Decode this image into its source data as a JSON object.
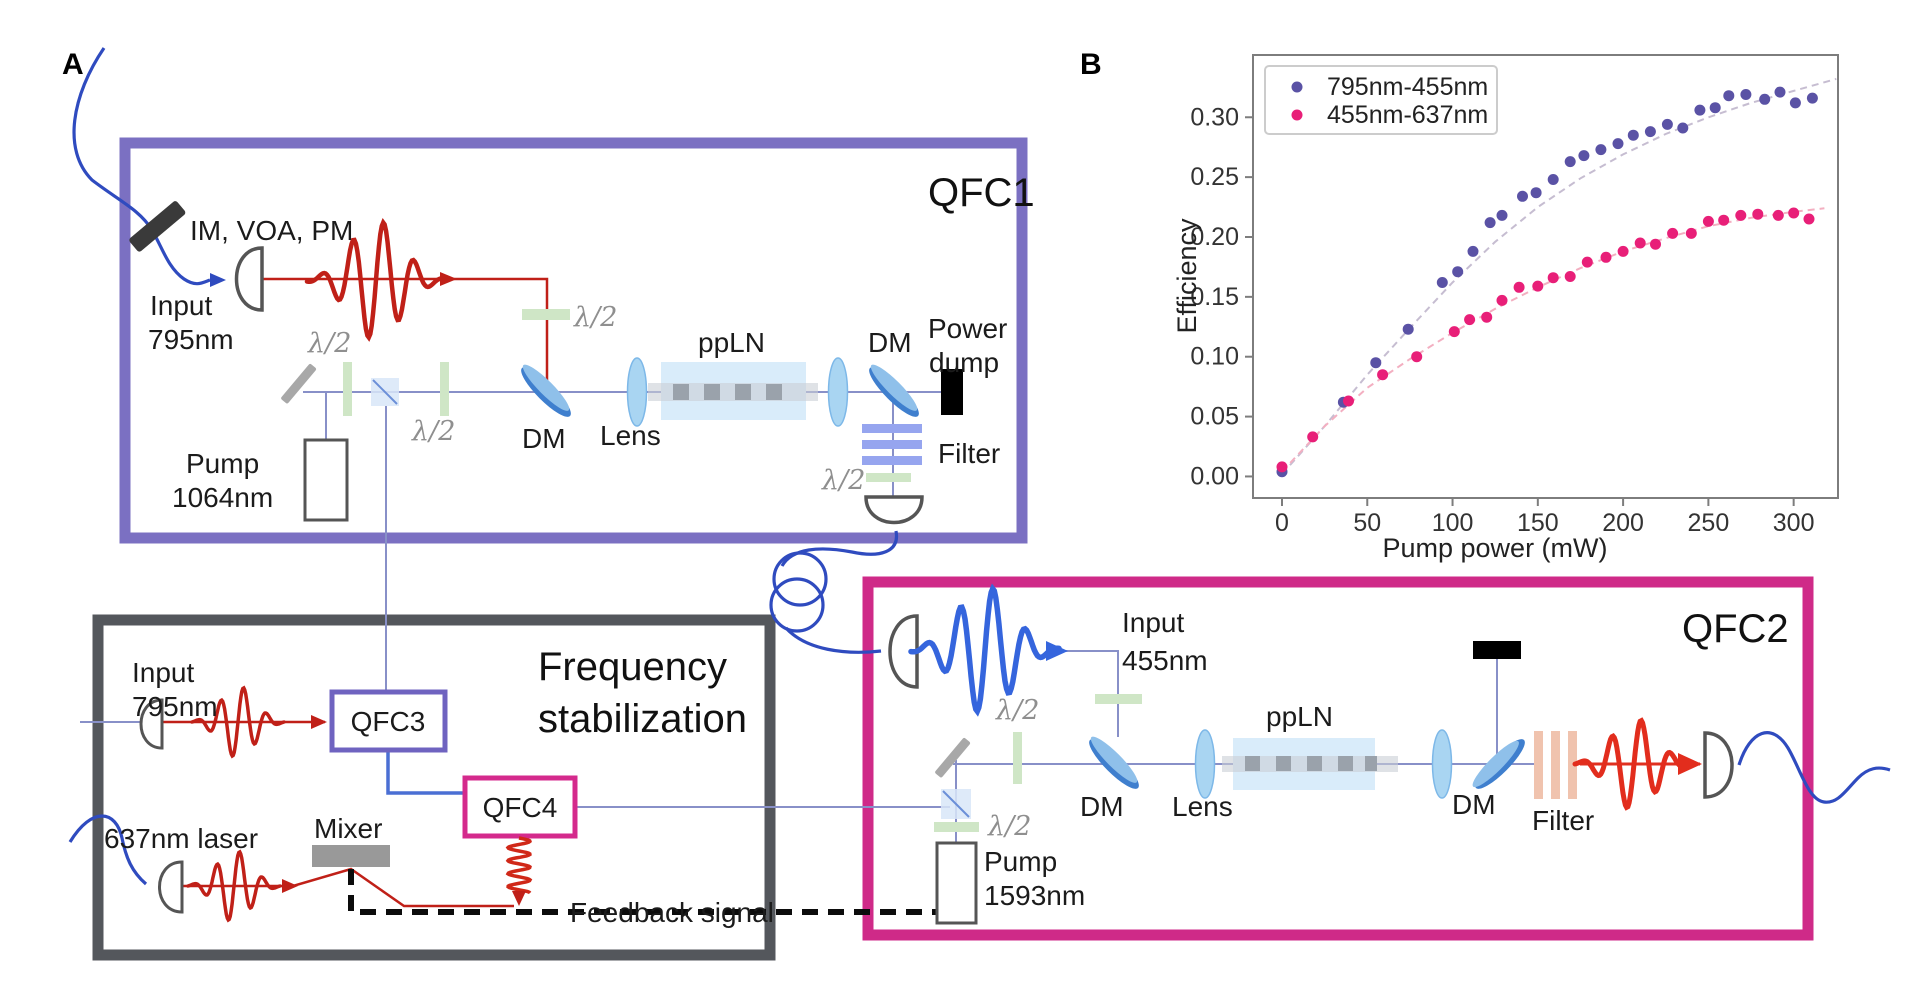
{
  "figure": {
    "background": "#ffffff"
  },
  "panel_a": {
    "label": "A",
    "half_wave": "λ/2",
    "colors": {
      "fiber_blue": "#2f4bbf",
      "beam_red": "#c02018",
      "thin_beam": "#8890c8",
      "qfc3_link_blue": "#4a6fd4"
    },
    "qfc1": {
      "title": "QFC1",
      "border_color": "#7b70c2",
      "im_voa_pm": "IM, VOA, PM",
      "input_line1": "Input",
      "input_line2": "795nm",
      "pump_line1": "Pump",
      "pump_line2": "1064nm",
      "dm1": "DM",
      "lens": "Lens",
      "ppln": "ppLN",
      "dm2": "DM",
      "power_dump_line1": "Power",
      "power_dump_line2": "dump",
      "filter": "Filter"
    },
    "freq_stab": {
      "title_line1": "Frequency",
      "title_line2": "stabilization",
      "border_color": "#54575c",
      "input_line1": "Input",
      "input_line2": "795nm",
      "qfc3": "QFC3",
      "qfc4": "QFC4",
      "mixer": "Mixer",
      "laser": "637nm laser",
      "feedback": "Feedback signal"
    },
    "qfc2": {
      "title": "QFC2",
      "border_color": "#cf2a88",
      "input_line1": "Input",
      "input_line2": "455nm",
      "pump_line1": "Pump",
      "pump_line2": "1593nm",
      "dm1": "DM",
      "lens": "Lens",
      "ppln": "ppLN",
      "dm2": "DM",
      "filter": "Filter"
    }
  },
  "panel_b": {
    "label": "B"
  },
  "chart_data": {
    "type": "scatter",
    "title": "",
    "xlabel": "Pump power (mW)",
    "ylabel": "Efficiency",
    "xlim": [
      -17,
      326
    ],
    "ylim": [
      -0.018,
      0.352
    ],
    "xticks": [
      0,
      50,
      100,
      150,
      200,
      250,
      300
    ],
    "yticks": [
      0.0,
      0.05,
      0.1,
      0.15,
      0.2,
      0.25,
      0.3
    ],
    "ytick_labels": [
      "0.00",
      "0.05",
      "0.10",
      "0.15",
      "0.20",
      "0.25",
      "0.30"
    ],
    "grid": false,
    "legend_position": "upper left",
    "series": [
      {
        "name": "795nm-455nm",
        "color": "#5a52a5",
        "marker": "dot",
        "x": [
          0,
          36,
          55,
          74,
          94,
          103,
          112,
          122,
          129,
          141,
          149,
          159,
          169,
          177,
          187,
          197,
          206,
          216,
          226,
          235,
          245,
          254,
          262,
          272,
          283,
          292,
          301,
          311
        ],
        "y": [
          0.004,
          0.062,
          0.095,
          0.123,
          0.162,
          0.171,
          0.188,
          0.212,
          0.218,
          0.234,
          0.237,
          0.248,
          0.263,
          0.268,
          0.273,
          0.278,
          0.285,
          0.288,
          0.294,
          0.291,
          0.306,
          0.308,
          0.318,
          0.319,
          0.315,
          0.321,
          0.312,
          0.316
        ],
        "fit": {
          "style": "dashed",
          "color": "#c6bdd1",
          "points": [
            [
              0,
              0.002
            ],
            [
              25,
              0.042
            ],
            [
              50,
              0.085
            ],
            [
              75,
              0.124
            ],
            [
              100,
              0.162
            ],
            [
              125,
              0.196
            ],
            [
              150,
              0.225
            ],
            [
              175,
              0.249
            ],
            [
              200,
              0.269
            ],
            [
              225,
              0.286
            ],
            [
              250,
              0.3
            ],
            [
              275,
              0.312
            ],
            [
              300,
              0.322
            ],
            [
              325,
              0.332
            ]
          ]
        }
      },
      {
        "name": "455nm-637nm",
        "color": "#e81f78",
        "marker": "dot",
        "x": [
          0,
          18,
          39,
          59,
          79,
          101,
          110,
          120,
          129,
          139,
          150,
          159,
          169,
          179,
          190,
          200,
          210,
          219,
          229,
          240,
          250,
          259,
          269,
          279,
          291,
          300,
          309
        ],
        "y": [
          0.008,
          0.033,
          0.063,
          0.085,
          0.1,
          0.121,
          0.131,
          0.133,
          0.147,
          0.158,
          0.159,
          0.166,
          0.167,
          0.179,
          0.183,
          0.188,
          0.195,
          0.194,
          0.203,
          0.203,
          0.213,
          0.214,
          0.218,
          0.219,
          0.218,
          0.22,
          0.215
        ],
        "fit": {
          "style": "dashed",
          "color": "#f3afc1",
          "points": [
            [
              0,
              0.004
            ],
            [
              25,
              0.042
            ],
            [
              50,
              0.074
            ],
            [
              75,
              0.098
            ],
            [
              100,
              0.12
            ],
            [
              125,
              0.14
            ],
            [
              150,
              0.158
            ],
            [
              175,
              0.174
            ],
            [
              200,
              0.188
            ],
            [
              225,
              0.199
            ],
            [
              250,
              0.209
            ],
            [
              275,
              0.216
            ],
            [
              300,
              0.221
            ],
            [
              318,
              0.224
            ]
          ]
        }
      }
    ]
  }
}
